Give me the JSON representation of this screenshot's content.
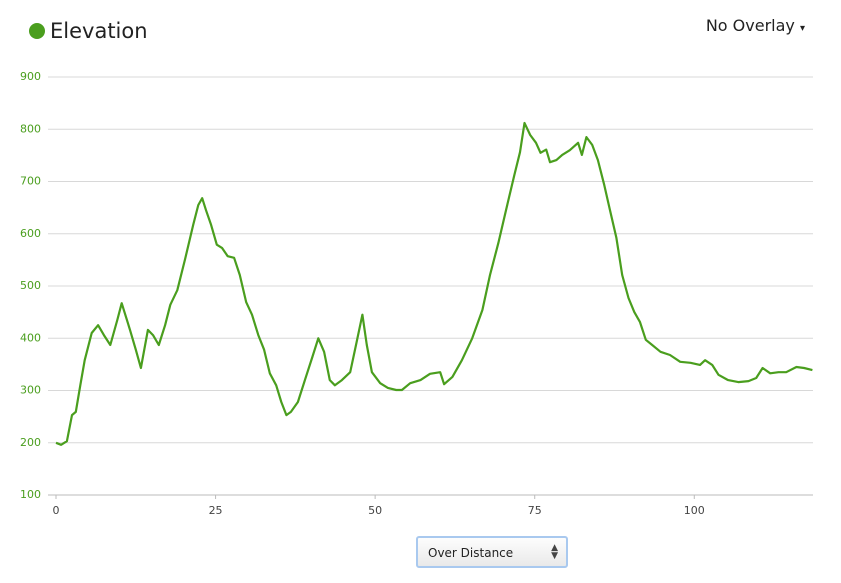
{
  "chart_data": {
    "type": "line",
    "series": [
      {
        "name": "Elevation",
        "color": "#4a9e1e",
        "values": [
          200,
          196,
          203,
          253,
          259,
          310,
          358,
          410,
          425,
          406,
          387,
          435,
          467,
          416,
          378,
          343,
          416,
          406,
          387,
          425,
          464,
          492,
          550,
          617,
          655,
          668,
          645,
          617,
          579,
          573,
          557,
          554,
          521,
          469,
          445,
          406,
          378,
          333,
          310,
          278,
          253,
          259,
          278,
          320,
          362,
          400,
          374,
          320,
          310,
          320,
          335,
          387,
          445,
          387,
          335,
          314,
          305,
          301,
          301,
          314,
          320,
          332,
          335,
          312,
          326,
          358,
          400,
          454,
          521,
          582,
          645,
          712,
          756,
          812,
          789,
          774,
          755,
          761,
          737,
          741,
          751,
          760,
          774,
          751,
          785,
          770,
          741,
          693,
          645,
          592,
          521,
          477,
          450,
          431,
          397,
          387,
          374,
          368,
          355,
          353,
          349,
          358,
          349,
          330,
          320,
          316,
          318,
          324,
          343,
          333,
          335,
          335,
          345,
          343,
          339
        ]
      }
    ],
    "x": [
      0,
      0.8,
      1.7,
      2.5,
      3.1,
      3.8,
      4.5,
      5.6,
      6.6,
      7.5,
      8.5,
      9.6,
      10.3,
      11.6,
      12.5,
      13.3,
      14.4,
      15.2,
      16.1,
      17.1,
      17.9,
      19.0,
      20.2,
      21.5,
      22.3,
      22.9,
      23.5,
      24.3,
      25.2,
      26.0,
      26.9,
      27.9,
      28.8,
      29.8,
      30.7,
      31.7,
      32.6,
      33.5,
      34.5,
      35.3,
      36.1,
      36.8,
      37.9,
      39.0,
      40.1,
      41.1,
      42.0,
      42.9,
      43.7,
      44.8,
      46.1,
      47.0,
      48.0,
      48.7,
      49.5,
      50.8,
      52.0,
      53.3,
      54.2,
      55.5,
      57.1,
      58.6,
      60.2,
      60.8,
      62.1,
      63.6,
      65.2,
      66.8,
      68.0,
      69.3,
      70.5,
      71.8,
      72.7,
      73.4,
      74.3,
      75.2,
      75.9,
      76.8,
      77.4,
      78.4,
      79.3,
      80.5,
      81.8,
      82.4,
      83.1,
      84.0,
      84.9,
      85.9,
      86.8,
      87.8,
      88.7,
      89.7,
      90.6,
      91.5,
      92.4,
      93.4,
      94.7,
      96.2,
      97.8,
      99.4,
      100.9,
      101.7,
      102.8,
      103.8,
      105.3,
      106.9,
      108.5,
      109.7,
      110.7,
      111.9,
      113.2,
      114.4,
      116.0,
      117.2,
      118.5
    ],
    "xlim": [
      0,
      118.6
    ],
    "ylim": [
      100,
      900
    ],
    "xticks": [
      0,
      25,
      50,
      75,
      100
    ],
    "yticks": [
      100,
      200,
      300,
      400,
      500,
      600,
      700,
      800,
      900
    ],
    "grid": true
  },
  "overlay_menu": "No Overlay",
  "mode_select": "Over Distance"
}
